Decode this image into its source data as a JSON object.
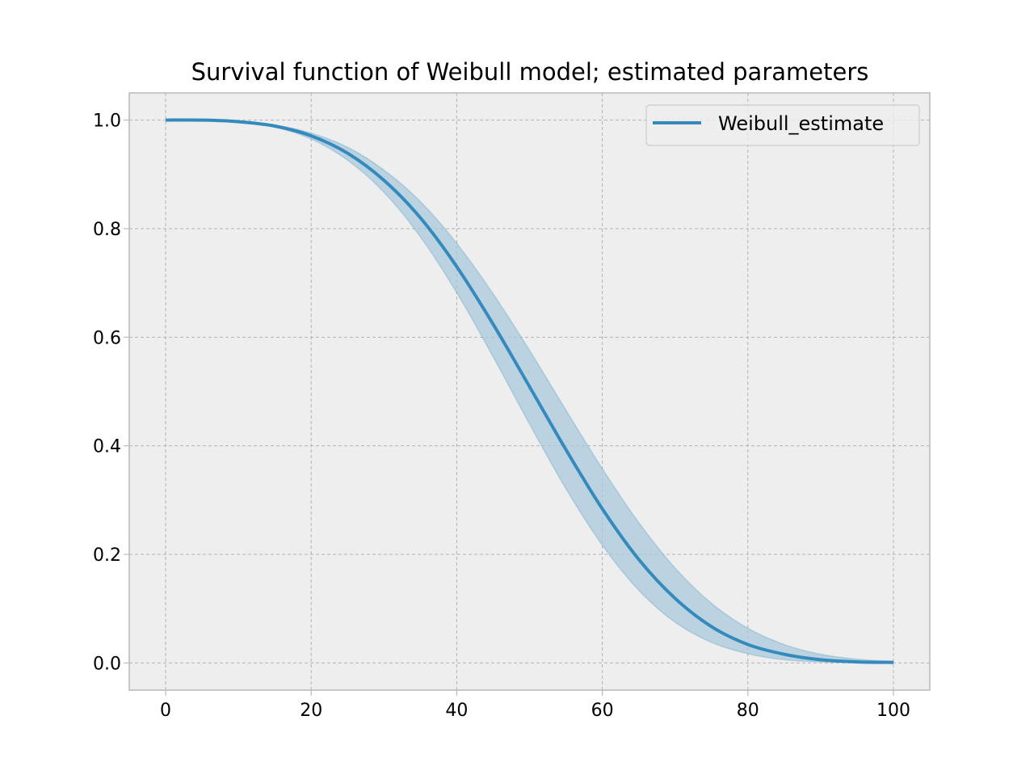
{
  "chart_data": {
    "type": "line",
    "title": "Survival function of Weibull model; estimated parameters",
    "xlabel": "",
    "ylabel": "",
    "xlim": [
      -5,
      105
    ],
    "ylim": [
      -0.05,
      1.05
    ],
    "xticks": [
      0,
      20,
      40,
      60,
      80,
      100
    ],
    "yticks": [
      0.0,
      0.2,
      0.4,
      0.6,
      0.8,
      1.0
    ],
    "xtick_labels": [
      "0",
      "20",
      "40",
      "60",
      "80",
      "100"
    ],
    "ytick_labels": [
      "0.0",
      "0.2",
      "0.4",
      "0.6",
      "0.8",
      "1.0"
    ],
    "grid": true,
    "legend_position": "top-right",
    "x": [
      0,
      5,
      10,
      15,
      20,
      25,
      30,
      35,
      40,
      45,
      50,
      55,
      60,
      65,
      70,
      75,
      80,
      85,
      90,
      95,
      100
    ],
    "series": [
      {
        "name": "Weibull_estimate",
        "color": "#348ABD",
        "values": [
          1.0,
          1.0,
          0.997,
          0.989,
          0.971,
          0.939,
          0.889,
          0.82,
          0.73,
          0.624,
          0.509,
          0.393,
          0.284,
          0.191,
          0.119,
          0.067,
          0.034,
          0.016,
          0.006,
          0.002,
          0.001
        ],
        "ci_upper": [
          1.0,
          1.0,
          0.998,
          0.991,
          0.976,
          0.95,
          0.908,
          0.85,
          0.773,
          0.68,
          0.576,
          0.466,
          0.358,
          0.259,
          0.175,
          0.11,
          0.064,
          0.034,
          0.016,
          0.007,
          0.003
        ],
        "ci_lower": [
          1.0,
          1.0,
          0.997,
          0.987,
          0.965,
          0.926,
          0.867,
          0.785,
          0.682,
          0.564,
          0.44,
          0.321,
          0.217,
          0.134,
          0.075,
          0.038,
          0.017,
          0.006,
          0.002,
          0.001,
          0.0
        ]
      }
    ],
    "colors": {
      "axes_bg": "#EEEEEE",
      "spine": "#BCBCBC",
      "grid": "#B2B2B2",
      "band": "#A9C8DB"
    }
  }
}
